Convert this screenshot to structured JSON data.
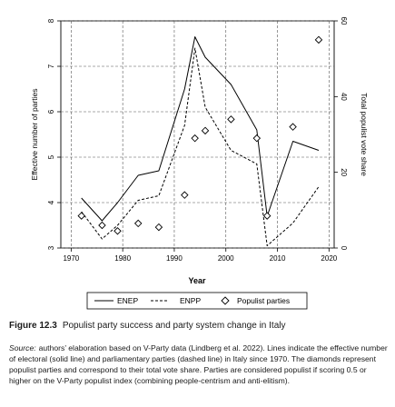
{
  "chart_data": {
    "type": "line",
    "xlabel": "Year",
    "ylabel_left": "Effective number of parties",
    "ylabel_right": "Total populist vote share",
    "xlim": [
      1968,
      2021
    ],
    "ylim_left": [
      3,
      8
    ],
    "ylim_right": [
      0,
      60
    ],
    "x_ticks": [
      1970,
      1980,
      1990,
      2000,
      2010,
      2020
    ],
    "y_left_ticks": [
      3,
      4,
      5,
      6,
      7,
      8
    ],
    "y_right_ticks": [
      0,
      20,
      40,
      60
    ],
    "grid": true,
    "legend_position": "bottom-center",
    "series": [
      {
        "name": "ENEP",
        "axis": "left",
        "style": "solid",
        "x": [
          1972,
          1976,
          1979,
          1983,
          1987,
          1992,
          1994,
          1996,
          2001,
          2006,
          2008,
          2013,
          2018
        ],
        "y": [
          4.1,
          3.6,
          4.0,
          4.6,
          4.7,
          6.5,
          7.65,
          7.2,
          6.6,
          5.6,
          3.7,
          5.35,
          5.15
        ]
      },
      {
        "name": "ENPP",
        "axis": "left",
        "style": "dashed",
        "x": [
          1972,
          1976,
          1979,
          1983,
          1987,
          1992,
          1994,
          1996,
          2001,
          2006,
          2008,
          2013,
          2018
        ],
        "y": [
          3.8,
          3.2,
          3.5,
          4.05,
          4.15,
          5.7,
          7.4,
          6.1,
          5.15,
          4.85,
          3.05,
          3.55,
          4.35
        ]
      },
      {
        "name": "Populist parties",
        "axis": "right",
        "style": "diamond",
        "x": [
          1972,
          1976,
          1979,
          1983,
          1987,
          1992,
          1994,
          1996,
          2001,
          2006,
          2008,
          2013,
          2018
        ],
        "y": [
          8.5,
          6,
          4.5,
          6.5,
          5.5,
          14,
          29,
          31,
          34,
          29,
          8.5,
          32,
          55
        ]
      }
    ]
  },
  "caption": {
    "figure_label": "Figure 12.3",
    "figure_title": "Populist party success and party system change in Italy",
    "source_label": "Source:",
    "source_text": "authors’ elaboration based on V-Party data (Lindberg et al. 2022). Lines indicate the effective number of electoral (solid line) and parliamentary parties (dashed line) in Italy since 1970. The diamonds represent populist parties and correspond to their total vote share. Parties are considered populist if scoring 0.5 or higher on the V-Party populist index (combining people-centrism and anti-elitism)."
  }
}
